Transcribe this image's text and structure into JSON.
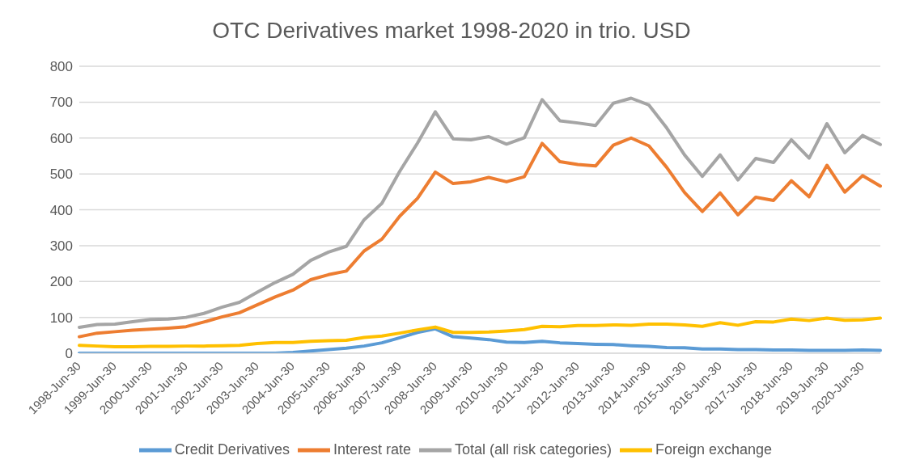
{
  "chart_data": {
    "type": "line",
    "title": "OTC Derivatives market 1998-2020 in trio. USD",
    "categories": [
      "1998-Jun-30",
      null,
      "1999-Jun-30",
      null,
      "2000-Jun-30",
      null,
      "2001-Jun-30",
      null,
      "2002-Jun-30",
      null,
      "2003-Jun-30",
      null,
      "2004-Jun-30",
      null,
      "2005-Jun-30",
      null,
      "2006-Jun-30",
      null,
      "2007-Jun-30",
      null,
      "2008-Jun-30",
      null,
      "2009-Jun-30",
      null,
      "2010-Jun-30",
      null,
      "2011-Jun-30",
      null,
      "2012-Jun-30",
      null,
      "2013-Jun-30",
      null,
      "2014-Jun-30",
      null,
      "2015-Jun-30",
      null,
      "2016-Jun-30",
      null,
      "2017-Jun-30",
      null,
      "2018-Jun-30",
      null,
      "2019-Jun-30",
      null,
      "2020-Jun-30",
      null
    ],
    "series": [
      {
        "name": "Credit Derivatives",
        "color": "#5b9bd5",
        "values": [
          0,
          0,
          0,
          0,
          0,
          0,
          0,
          0,
          0,
          0,
          0,
          0,
          2,
          6,
          10,
          14,
          20,
          29,
          43,
          58,
          68,
          46,
          42,
          38,
          31,
          30,
          33,
          29,
          27,
          25,
          24,
          21,
          19,
          16,
          15,
          12,
          12,
          10,
          10,
          9,
          9,
          8,
          8,
          8,
          9,
          8
        ]
      },
      {
        "name": "Interest rate",
        "color": "#ed7d31",
        "values": [
          46,
          56,
          60,
          64,
          67,
          70,
          74,
          87,
          101,
          113,
          135,
          157,
          176,
          205,
          219,
          229,
          285,
          318,
          382,
          432,
          505,
          473,
          478,
          490,
          478,
          492,
          585,
          534,
          526,
          522,
          580,
          600,
          578,
          518,
          448,
          395,
          447,
          386,
          435,
          426,
          481,
          436,
          524,
          449,
          495,
          466
        ]
      },
      {
        "name": "Total (all risk categories)",
        "color": "#a5a5a5",
        "values": [
          72,
          80,
          81,
          88,
          94,
          95,
          100,
          111,
          128,
          142,
          170,
          197,
          220,
          259,
          282,
          298,
          372,
          418,
          507,
          586,
          673,
          598,
          595,
          604,
          583,
          601,
          707,
          648,
          642,
          635,
          697,
          711,
          692,
          628,
          553,
          493,
          553,
          483,
          543,
          532,
          595,
          544,
          640,
          559,
          607,
          582
        ]
      },
      {
        "name": "Foreign exchange",
        "color": "#ffc000",
        "values": [
          22,
          20,
          18,
          18,
          19,
          19,
          20,
          20,
          21,
          22,
          27,
          30,
          30,
          33,
          35,
          36,
          44,
          48,
          56,
          65,
          73,
          58,
          58,
          59,
          62,
          66,
          75,
          74,
          77,
          77,
          79,
          78,
          81,
          81,
          79,
          75,
          85,
          78,
          88,
          87,
          95,
          91,
          98,
          92,
          93,
          98
        ]
      }
    ],
    "ylim": [
      0,
      800
    ],
    "yticks": [
      0,
      100,
      200,
      300,
      400,
      500,
      600,
      700,
      800
    ],
    "grid": "y",
    "legend": "bottom",
    "marker": "none",
    "line_style": "solid"
  }
}
